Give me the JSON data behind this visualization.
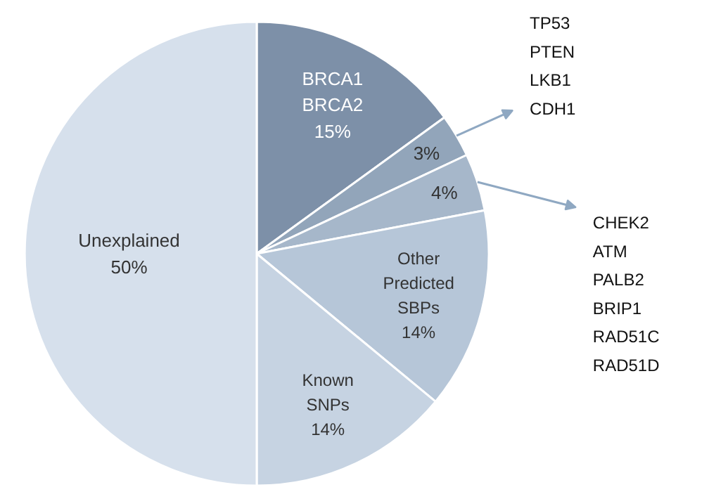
{
  "chart_data": {
    "type": "pie",
    "categories": [
      "BRCA1\nBRCA2",
      "TP53\nPTEN\nLKB1\nCDH1",
      "CHEK2\nATM\nPALB2\nBRIP1\nRAD51C\nRAD51D",
      "Other\nPredicted\nSBPs",
      "Known\nSNPs",
      "Unexplained"
    ],
    "values": [
      15,
      3,
      4,
      14,
      14,
      50
    ],
    "colors": [
      "#7d90a8",
      "#92a5ba",
      "#a6b7ca",
      "#b6c6d8",
      "#c6d3e2",
      "#d6e0ec"
    ],
    "value_labels": [
      "15%",
      "3%",
      "4%",
      "14%",
      "14%",
      "50%"
    ]
  }
}
